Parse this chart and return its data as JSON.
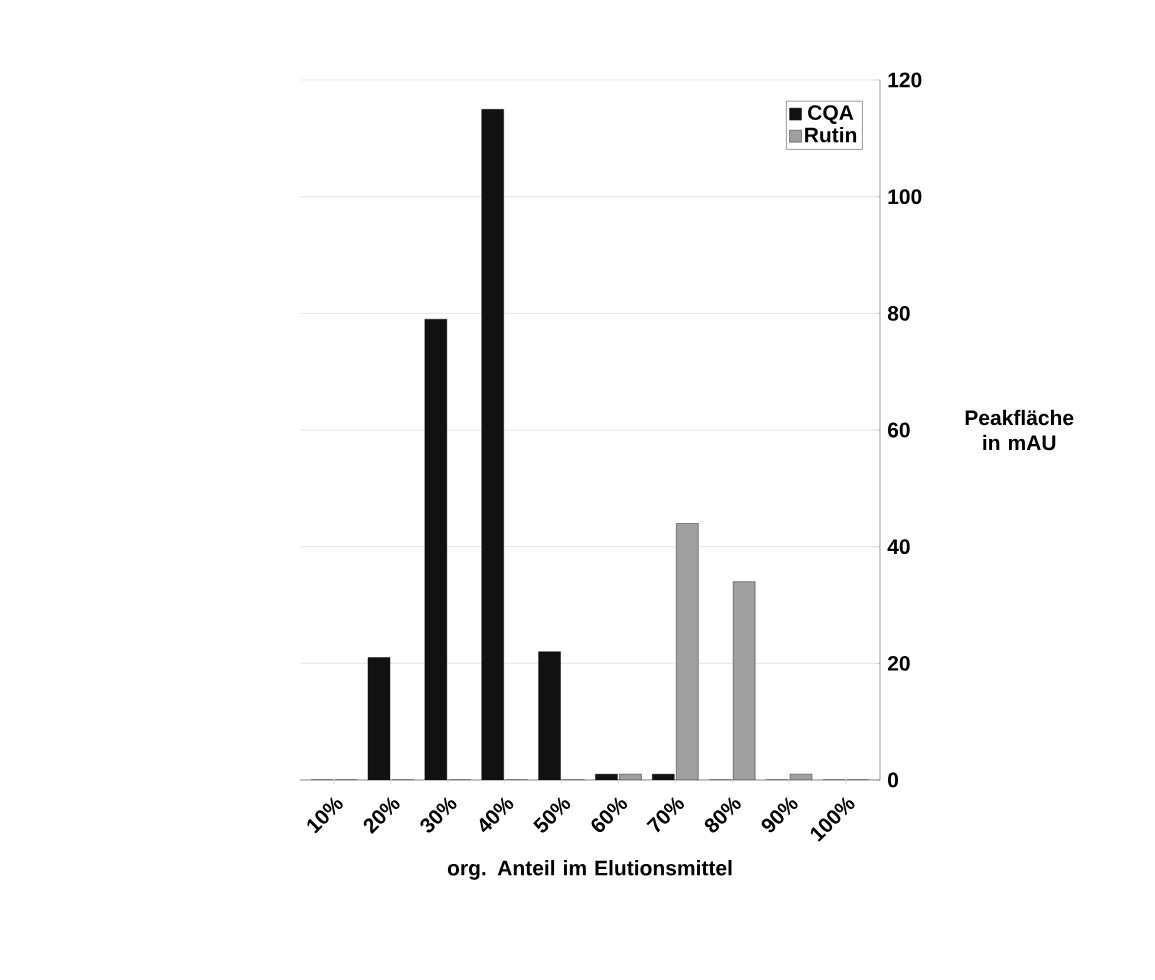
{
  "chart_data": {
    "type": "bar",
    "xlabel": "org. Anteil im Elutionsmittel",
    "ylabel": "Peakfläche in mAU",
    "categories": [
      "10%",
      "20%",
      "30%",
      "40%",
      "50%",
      "60%",
      "70%",
      "80%",
      "90%",
      "100%"
    ],
    "series": [
      {
        "name": "CQA",
        "color": "#111111",
        "values": [
          0,
          21,
          79,
          115,
          22,
          1,
          1,
          0,
          0,
          0
        ]
      },
      {
        "name": "Rutin",
        "color": "#a0a0a0",
        "values": [
          0,
          0,
          0,
          0,
          0,
          1,
          44,
          34,
          1,
          0
        ]
      }
    ],
    "ylim": [
      0,
      120
    ],
    "yticks": [
      0,
      20,
      40,
      60,
      80,
      100,
      120
    ],
    "grid": "y",
    "legend": "top right"
  }
}
